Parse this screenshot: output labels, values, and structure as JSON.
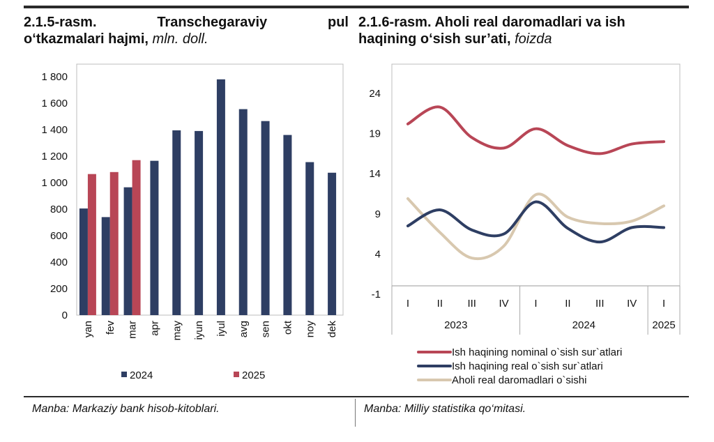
{
  "left": {
    "title_lines": [
      "2.1.5-rasm.",
      "Transchegaraviy",
      "pul"
    ],
    "title_line2": "o‘tkazmalari hajmi,",
    "title_unit": "mln. doll.",
    "source": "Manba: Markaziy bank hisob-kitoblari."
  },
  "right": {
    "title_line1": "2.1.6-rasm. Aholi real daromadlari va ish",
    "title_line2": "haqining o‘sish sur’ati,",
    "title_unit": "foizda",
    "source": "Manba: Milliy statistika qo‘mitasi."
  },
  "chart_data": [
    {
      "type": "bar",
      "categories": [
        "yan",
        "fev",
        "mar",
        "apr",
        "may",
        "iyun",
        "iyul",
        "avg",
        "sen",
        "okt",
        "noy",
        "dek"
      ],
      "yticks": [
        "0",
        "200",
        "400",
        "600",
        "800",
        "1 000",
        "1 200",
        "1 400",
        "1 600",
        "1 800"
      ],
      "ylim": [
        0,
        1800
      ],
      "grid": false,
      "legend_position": "bottom",
      "series": [
        {
          "name": "2024",
          "color": "#2e3e63",
          "values": [
            805,
            740,
            965,
            1165,
            1395,
            1390,
            1780,
            1555,
            1465,
            1360,
            1155,
            1075
          ]
        },
        {
          "name": "2025",
          "color": "#b84656",
          "values": [
            1065,
            1080,
            1170,
            null,
            null,
            null,
            null,
            null,
            null,
            null,
            null,
            null
          ]
        }
      ]
    },
    {
      "type": "line",
      "categories": [
        "I",
        "II",
        "III",
        "IV",
        "I",
        "II",
        "III",
        "IV",
        "I"
      ],
      "groups": [
        {
          "label": "2023",
          "span": 4
        },
        {
          "label": "2024",
          "span": 4
        },
        {
          "label": "2025",
          "span": 1
        }
      ],
      "yticks": [
        "-1",
        "4",
        "9",
        "14",
        "19",
        "24"
      ],
      "ylim": [
        -1,
        24
      ],
      "grid": false,
      "legend_position": "bottom",
      "series": [
        {
          "name": "Ish haqining nominal o`sish sur`atlari",
          "color": "#b84656",
          "values": [
            20.2,
            22.3,
            18.5,
            17.2,
            19.6,
            17.5,
            16.5,
            17.7,
            18.0
          ]
        },
        {
          "name": "Ish haqining real o`sish sur`atlari",
          "color": "#2e3e63",
          "values": [
            7.5,
            9.5,
            7.0,
            6.5,
            10.5,
            7.2,
            5.5,
            7.3,
            7.3
          ]
        },
        {
          "name": "Aholi real daromadlari o`sishi",
          "color": "#d8c8af",
          "values": [
            10.9,
            6.7,
            3.5,
            5.0,
            11.4,
            8.6,
            7.8,
            8.1,
            10.0
          ]
        }
      ]
    }
  ]
}
